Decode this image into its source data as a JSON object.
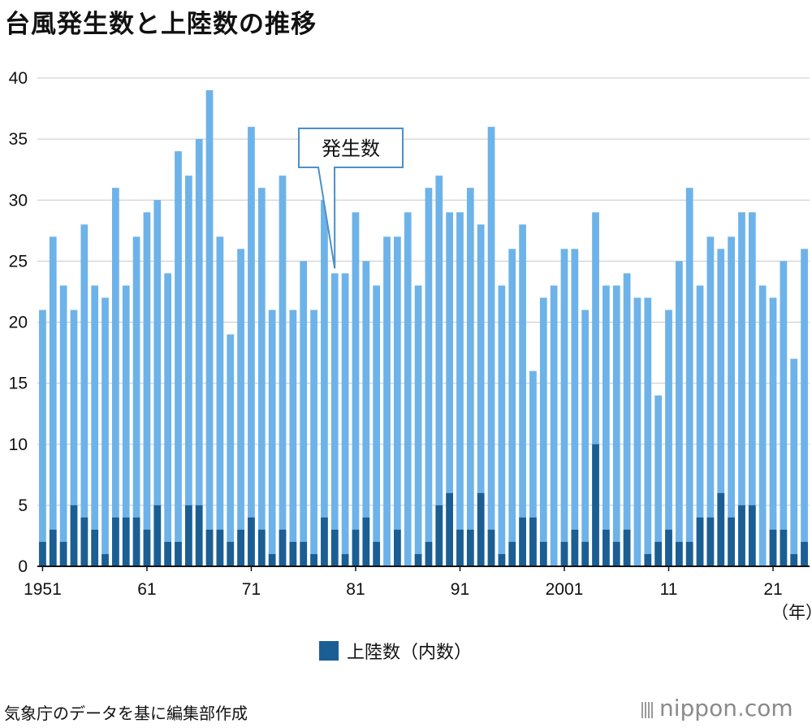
{
  "title": "台風発生数と上陸数の推移",
  "legend": {
    "label": "上陸数（内数）",
    "color": "#1b5e93"
  },
  "unit": "（年）",
  "source": "気象庁のデータを基に編集部作成",
  "logo": {
    "name": "nippon",
    "dot": ".",
    "tld": "com"
  },
  "callout": {
    "label": "発生数",
    "year": 1979
  },
  "chart_data": {
    "type": "bar",
    "stacked": true,
    "x": [
      1951,
      1952,
      1953,
      1954,
      1955,
      1956,
      1957,
      1958,
      1959,
      1960,
      1961,
      1962,
      1963,
      1964,
      1965,
      1966,
      1967,
      1968,
      1969,
      1970,
      1971,
      1972,
      1973,
      1974,
      1975,
      1976,
      1977,
      1978,
      1979,
      1980,
      1981,
      1982,
      1983,
      1984,
      1985,
      1986,
      1987,
      1988,
      1989,
      1990,
      1991,
      1992,
      1993,
      1994,
      1995,
      1996,
      1997,
      1998,
      1999,
      2000,
      2001,
      2002,
      2003,
      2004,
      2005,
      2006,
      2007,
      2008,
      2009,
      2010,
      2011,
      2012,
      2013,
      2014,
      2015,
      2016,
      2017,
      2018,
      2019,
      2020,
      2021,
      2022,
      2023,
      2024
    ],
    "series": [
      {
        "name": "発生数",
        "color": "#6db3e9",
        "values": [
          21,
          27,
          23,
          21,
          28,
          23,
          22,
          31,
          23,
          27,
          29,
          30,
          24,
          34,
          32,
          35,
          39,
          27,
          19,
          26,
          36,
          31,
          21,
          32,
          21,
          25,
          21,
          30,
          24,
          24,
          29,
          25,
          23,
          27,
          27,
          29,
          23,
          31,
          32,
          29,
          29,
          31,
          28,
          36,
          23,
          26,
          28,
          16,
          22,
          23,
          26,
          26,
          21,
          29,
          23,
          23,
          24,
          22,
          22,
          14,
          21,
          25,
          31,
          23,
          27,
          26,
          27,
          29,
          29,
          23,
          22,
          25,
          17,
          26
        ]
      },
      {
        "name": "上陸数（内数）",
        "color": "#1b5e93",
        "values": [
          2,
          3,
          2,
          5,
          4,
          3,
          1,
          4,
          4,
          4,
          3,
          5,
          2,
          2,
          5,
          5,
          3,
          3,
          2,
          3,
          4,
          3,
          1,
          3,
          2,
          2,
          1,
          4,
          3,
          1,
          3,
          4,
          2,
          0,
          3,
          0,
          1,
          2,
          5,
          6,
          3,
          3,
          6,
          3,
          1,
          2,
          4,
          4,
          2,
          0,
          2,
          3,
          2,
          10,
          3,
          2,
          3,
          0,
          1,
          2,
          3,
          2,
          2,
          4,
          4,
          6,
          4,
          5,
          5,
          0,
          3,
          3,
          1,
          2
        ]
      }
    ],
    "x_tick_labels": [
      {
        "year": 1951,
        "label": "1951"
      },
      {
        "year": 1961,
        "label": "61"
      },
      {
        "year": 1971,
        "label": "71"
      },
      {
        "year": 1981,
        "label": "81"
      },
      {
        "year": 1991,
        "label": "91"
      },
      {
        "year": 2001,
        "label": "2001"
      },
      {
        "year": 2011,
        "label": "11"
      },
      {
        "year": 2021,
        "label": "21"
      }
    ],
    "ylim": [
      0,
      40
    ],
    "y_ticks": [
      0,
      5,
      10,
      15,
      20,
      25,
      30,
      35,
      40
    ],
    "grid": true
  }
}
